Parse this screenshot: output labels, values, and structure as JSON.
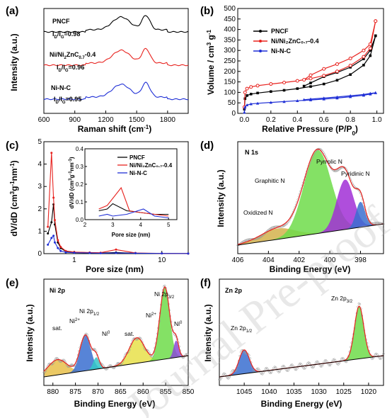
{
  "watermark": "Journal Pre-proof",
  "chart_data": [
    {
      "panel": "(a)",
      "type": "line",
      "xlabel": "Raman shift (cm⁻¹)",
      "ylabel": "Intensity (a.u.)",
      "xlim": [
        600,
        2000
      ],
      "xticks": [
        600,
        900,
        1200,
        1500,
        1800
      ],
      "series": [
        {
          "name": "PNCF",
          "ratio_text": "I_D/I_G=0.98",
          "color": "#000000"
        },
        {
          "name": "Ni/Ni2ZnC0.7-0.4",
          "ratio_text": "I_D/I_G=0.96",
          "color": "#e8231f"
        },
        {
          "name": "Ni-N-C",
          "ratio_text": "I_D/I_G=0.95",
          "color": "#1f2fd6"
        }
      ],
      "peaks": {
        "D": 1350,
        "G": 1590
      }
    },
    {
      "panel": "(b)",
      "type": "line",
      "xlabel": "Relative Pressure (P/P0)",
      "ylabel": "Volume / cm3 g-1",
      "xlim": [
        -0.05,
        1.05
      ],
      "ylim": [
        0,
        500
      ],
      "xticks": [
        0.0,
        0.2,
        0.4,
        0.6,
        0.8,
        1.0
      ],
      "yticks": [
        0,
        50,
        100,
        150,
        200,
        250,
        300,
        350,
        400,
        450,
        500
      ],
      "legend_position": "top-left",
      "series": [
        {
          "name": "PNCF",
          "color": "#000000",
          "marker": "square",
          "adsorption": [
            [
              0.0,
              20
            ],
            [
              0.005,
              70
            ],
            [
              0.02,
              85
            ],
            [
              0.05,
              92
            ],
            [
              0.1,
              97
            ],
            [
              0.2,
              104
            ],
            [
              0.3,
              110
            ],
            [
              0.4,
              118
            ],
            [
              0.5,
              128
            ],
            [
              0.6,
              140
            ],
            [
              0.7,
              158
            ],
            [
              0.8,
              185
            ],
            [
              0.9,
              230
            ],
            [
              0.95,
              275
            ],
            [
              0.99,
              370
            ]
          ],
          "desorption": [
            [
              0.99,
              370
            ],
            [
              0.95,
              300
            ],
            [
              0.9,
              260
            ],
            [
              0.8,
              220
            ],
            [
              0.7,
              195
            ],
            [
              0.6,
              175
            ],
            [
              0.5,
              145
            ],
            [
              0.45,
              130
            ]
          ]
        },
        {
          "name": "Ni/Ni2ZnC0.7-0.4",
          "color": "#e8231f",
          "marker": "circle",
          "adsorption": [
            [
              0.0,
              30
            ],
            [
              0.005,
              100
            ],
            [
              0.02,
              118
            ],
            [
              0.05,
              126
            ],
            [
              0.1,
              132
            ],
            [
              0.2,
              140
            ],
            [
              0.3,
              147
            ],
            [
              0.4,
              155
            ],
            [
              0.5,
              166
            ],
            [
              0.6,
              180
            ],
            [
              0.7,
              200
            ],
            [
              0.8,
              228
            ],
            [
              0.9,
              270
            ],
            [
              0.95,
              310
            ],
            [
              0.99,
              440
            ]
          ],
          "desorption": [
            [
              0.99,
              440
            ],
            [
              0.95,
              330
            ],
            [
              0.9,
              300
            ],
            [
              0.8,
              262
            ],
            [
              0.7,
              235
            ],
            [
              0.6,
              212
            ],
            [
              0.5,
              182
            ],
            [
              0.45,
              160
            ]
          ]
        },
        {
          "name": "Ni-N-C",
          "color": "#1f2fd6",
          "marker": "triangle",
          "adsorption": [
            [
              0.0,
              5
            ],
            [
              0.005,
              30
            ],
            [
              0.02,
              40
            ],
            [
              0.05,
              45
            ],
            [
              0.1,
              48
            ],
            [
              0.2,
              52
            ],
            [
              0.3,
              56
            ],
            [
              0.4,
              60
            ],
            [
              0.5,
              64
            ],
            [
              0.6,
              68
            ],
            [
              0.7,
              73
            ],
            [
              0.8,
              79
            ],
            [
              0.9,
              86
            ],
            [
              0.95,
              92
            ],
            [
              0.99,
              98
            ]
          ],
          "desorption": [
            [
              0.99,
              98
            ],
            [
              0.95,
              95
            ],
            [
              0.9,
              90
            ],
            [
              0.8,
              84
            ],
            [
              0.7,
              78
            ],
            [
              0.6,
              73
            ],
            [
              0.5,
              68
            ],
            [
              0.45,
              65
            ]
          ]
        }
      ]
    },
    {
      "panel": "(c)",
      "type": "line",
      "xlabel": "Pore size (nm)",
      "ylabel": "dV/dD (cm3g-1nm-1)",
      "xscale": "log",
      "xlim": [
        0.45,
        20
      ],
      "ylim": [
        0,
        5
      ],
      "xticks": [
        1,
        10
      ],
      "yticks": [
        0,
        1,
        2,
        3,
        4,
        5
      ],
      "series": [
        {
          "name": "PNCF",
          "color": "#000000",
          "points": [
            [
              0.5,
              0.9
            ],
            [
              0.55,
              1.4
            ],
            [
              0.58,
              2.2
            ],
            [
              0.6,
              1.3
            ],
            [
              0.65,
              0.5
            ],
            [
              0.7,
              0.25
            ],
            [
              0.8,
              0.1
            ],
            [
              1.0,
              0.06
            ],
            [
              1.5,
              0.04
            ],
            [
              2.0,
              0.03
            ],
            [
              3.0,
              0.05
            ],
            [
              5.0,
              0.02
            ],
            [
              10,
              0.01
            ],
            [
              20,
              0.005
            ]
          ]
        },
        {
          "name": "Ni/Ni2ZnC0.7-0.4",
          "color": "#e8231f",
          "points": [
            [
              0.5,
              1.2
            ],
            [
              0.55,
              4.5
            ],
            [
              0.58,
              2.5
            ],
            [
              0.6,
              1.5
            ],
            [
              0.65,
              0.6
            ],
            [
              0.7,
              0.3
            ],
            [
              0.8,
              0.12
            ],
            [
              1.0,
              0.07
            ],
            [
              1.5,
              0.05
            ],
            [
              2.0,
              0.04
            ],
            [
              3.0,
              0.18
            ],
            [
              5.0,
              0.03
            ],
            [
              10,
              0.01
            ],
            [
              20,
              0.005
            ]
          ]
        },
        {
          "name": "Ni-N-C",
          "color": "#1f2fd6",
          "points": [
            [
              0.5,
              0.4
            ],
            [
              0.55,
              0.7
            ],
            [
              0.58,
              0.8
            ],
            [
              0.6,
              0.5
            ],
            [
              0.65,
              0.25
            ],
            [
              0.7,
              0.12
            ],
            [
              0.8,
              0.06
            ],
            [
              1.0,
              0.04
            ],
            [
              1.5,
              0.03
            ],
            [
              2.0,
              0.02
            ],
            [
              3.0,
              0.03
            ],
            [
              5.0,
              0.02
            ],
            [
              10,
              0.01
            ],
            [
              20,
              0.005
            ]
          ]
        }
      ],
      "inset": {
        "xlabel": "Pore size (nm)",
        "ylabel": "dV/dD (cm3g-1nm-1)",
        "xlim": [
          2,
          5.3
        ],
        "ylim": [
          0,
          0.4
        ],
        "xticks": [
          2,
          3,
          4,
          5
        ],
        "yticks": [
          0.0,
          0.1,
          0.2,
          0.3,
          0.4
        ],
        "series": [
          {
            "name": "PNCF",
            "color": "#000000",
            "points": [
              [
                2.5,
                0.05
              ],
              [
                2.8,
                0.06
              ],
              [
                3.0,
                0.09
              ],
              [
                3.5,
                0.05
              ],
              [
                4.0,
                0.04
              ],
              [
                4.5,
                0.03
              ],
              [
                5.0,
                0.03
              ]
            ]
          },
          {
            "name": "Ni/Ni2ZnC0.7-0.4",
            "color": "#e8231f",
            "points": [
              [
                2.5,
                0.06
              ],
              [
                2.8,
                0.08
              ],
              [
                3.3,
                0.18
              ],
              [
                3.6,
                0.05
              ],
              [
                4.0,
                0.04
              ],
              [
                4.5,
                0.03
              ],
              [
                5.0,
                0.02
              ]
            ]
          },
          {
            "name": "Ni-N-C",
            "color": "#1f2fd6",
            "points": [
              [
                2.5,
                0.02
              ],
              [
                2.8,
                0.03
              ],
              [
                3.0,
                0.02
              ],
              [
                3.5,
                0.03
              ],
              [
                4.1,
                0.06
              ],
              [
                4.5,
                0.02
              ],
              [
                5.0,
                0.01
              ]
            ]
          }
        ]
      }
    },
    {
      "panel": "(d)",
      "type": "area",
      "title": "N 1s",
      "xlabel": "Binding Energy (eV)",
      "ylabel": "Intensity (a.u.)",
      "xlim": [
        406,
        396.5
      ],
      "xticks": [
        406,
        404,
        402,
        400,
        398
      ],
      "components": [
        {
          "name": "Oxidized N",
          "center": 403.4,
          "fwhm": 2.6,
          "height": 0.12,
          "color": "#d4b24c"
        },
        {
          "name": "Graphitic N",
          "center": 400.8,
          "fwhm": 2.1,
          "height": 0.92,
          "color": "#6edc4a"
        },
        {
          "name": "Pyrrolic N",
          "center": 399.0,
          "fwhm": 1.3,
          "height": 0.55,
          "color": "#a12fd6"
        },
        {
          "name": "Pyridinic N",
          "center": 398.0,
          "fwhm": 0.7,
          "height": 0.28,
          "color": "#3a6fd0"
        }
      ]
    },
    {
      "panel": "(e)",
      "type": "area",
      "title": "Ni 2p",
      "xlabel": "Binding Energy (eV)",
      "ylabel": "Intensity (a.u.)",
      "xlim": [
        882,
        850
      ],
      "xticks": [
        880,
        875,
        870,
        865,
        860,
        855,
        850
      ],
      "labels": [
        "sat.",
        "Ni2+",
        "Ni 2p1/2",
        "Ni0",
        "sat.",
        "Ni2+",
        "Ni 2p3/2",
        "Ni0"
      ],
      "components": [
        {
          "name": "sat.",
          "center": 879.0,
          "fwhm": 5.0,
          "height": 0.18,
          "color": "#e8c04a"
        },
        {
          "name": "Ni2+",
          "center": 872.8,
          "fwhm": 2.8,
          "height": 0.42,
          "color": "#3a6fd0"
        },
        {
          "name": "Ni0",
          "center": 870.4,
          "fwhm": 1.6,
          "height": 0.14,
          "color": "#34c8c8"
        },
        {
          "name": "sat.",
          "center": 861.4,
          "fwhm": 4.0,
          "height": 0.3,
          "color": "#e8e04a"
        },
        {
          "name": "Ni2+",
          "center": 855.2,
          "fwhm": 2.6,
          "height": 0.85,
          "color": "#6edc4a"
        },
        {
          "name": "Ni0",
          "center": 852.7,
          "fwhm": 1.3,
          "height": 0.2,
          "color": "#8a4ad6"
        }
      ]
    },
    {
      "panel": "(f)",
      "type": "area",
      "title": "Zn 2p",
      "xlabel": "Binding Energy (eV)",
      "ylabel": "Intensity (a.u.)",
      "xlim": [
        1050,
        1017
      ],
      "xticks": [
        1045,
        1040,
        1035,
        1030,
        1025,
        1020
      ],
      "labels": [
        "Zn 2p1/2",
        "Zn 2p3/2"
      ],
      "components": [
        {
          "name": "Zn 2p1/2",
          "center": 1045.0,
          "fwhm": 2.4,
          "height": 0.28,
          "color": "#3a6fd0"
        },
        {
          "name": "Zn 2p3/2",
          "center": 1021.9,
          "fwhm": 2.2,
          "height": 0.62,
          "color": "#6edc4a"
        }
      ]
    }
  ]
}
